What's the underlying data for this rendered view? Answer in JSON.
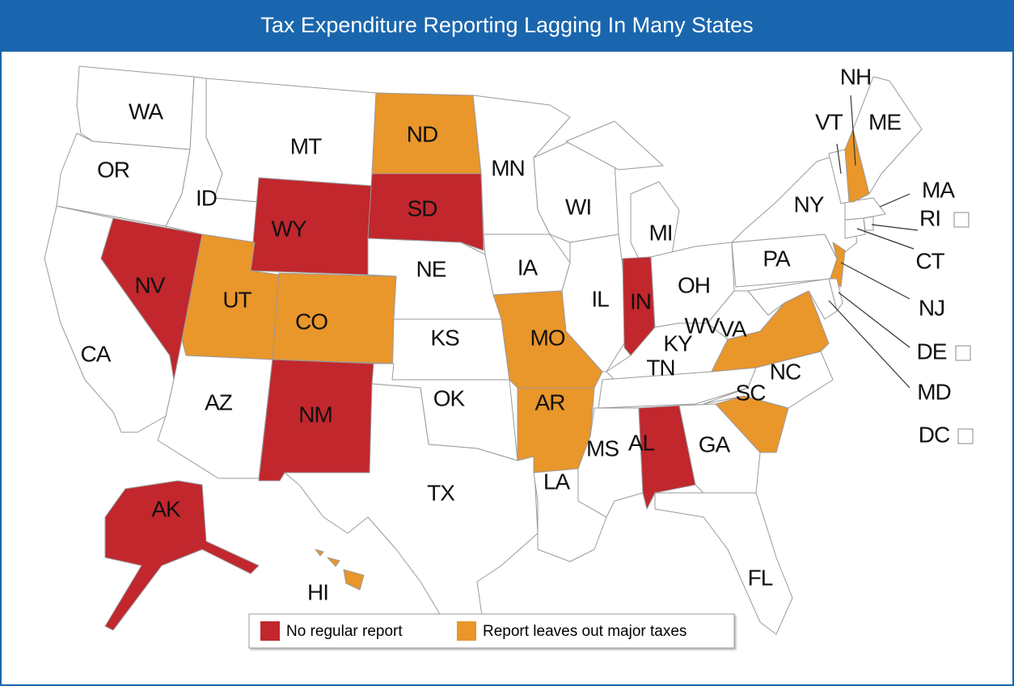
{
  "title": "Tax Expenditure Reporting Lagging In Many States",
  "legend": [
    {
      "label": "No regular report",
      "color": "#c1272d"
    },
    {
      "label": "Report leaves out major taxes",
      "color": "#e9962b"
    }
  ],
  "states": [
    {
      "label": "WA"
    },
    {
      "label": "OR"
    },
    {
      "label": "CA"
    },
    {
      "label": "NV",
      "key": 0
    },
    {
      "label": "ID"
    },
    {
      "label": "MT"
    },
    {
      "label": "WY",
      "key": 0
    },
    {
      "label": "UT",
      "key": 1
    },
    {
      "label": "CO",
      "key": 1
    },
    {
      "label": "AZ"
    },
    {
      "label": "NM",
      "key": 0
    },
    {
      "label": "ND",
      "key": 1
    },
    {
      "label": "SD",
      "key": 0
    },
    {
      "label": "NE"
    },
    {
      "label": "KS"
    },
    {
      "label": "OK"
    },
    {
      "label": "TX"
    },
    {
      "label": "MN"
    },
    {
      "label": "IA"
    },
    {
      "label": "MO",
      "key": 1
    },
    {
      "label": "AR",
      "key": 1
    },
    {
      "label": "LA"
    },
    {
      "label": "WI"
    },
    {
      "label": "IL"
    },
    {
      "label": "MI"
    },
    {
      "label": "IN",
      "key": 0
    },
    {
      "label": "OH"
    },
    {
      "label": "KY"
    },
    {
      "label": "TN"
    },
    {
      "label": "MS"
    },
    {
      "label": "AL",
      "key": 0
    },
    {
      "label": "GA"
    },
    {
      "label": "FL"
    },
    {
      "label": "SC",
      "key": 1
    },
    {
      "label": "NC"
    },
    {
      "label": "VA",
      "key": 1
    },
    {
      "label": "WV"
    },
    {
      "label": "PA"
    },
    {
      "label": "NY"
    },
    {
      "label": "NJ",
      "key": 1
    },
    {
      "label": "DE"
    },
    {
      "label": "MD"
    },
    {
      "label": "DC"
    },
    {
      "label": "RI"
    },
    {
      "label": "CT"
    },
    {
      "label": "MA"
    },
    {
      "label": "NH",
      "key": 1
    },
    {
      "label": "VT"
    },
    {
      "label": "ME"
    },
    {
      "label": "AK",
      "key": 0
    },
    {
      "label": "HI",
      "key": 1
    }
  ]
}
